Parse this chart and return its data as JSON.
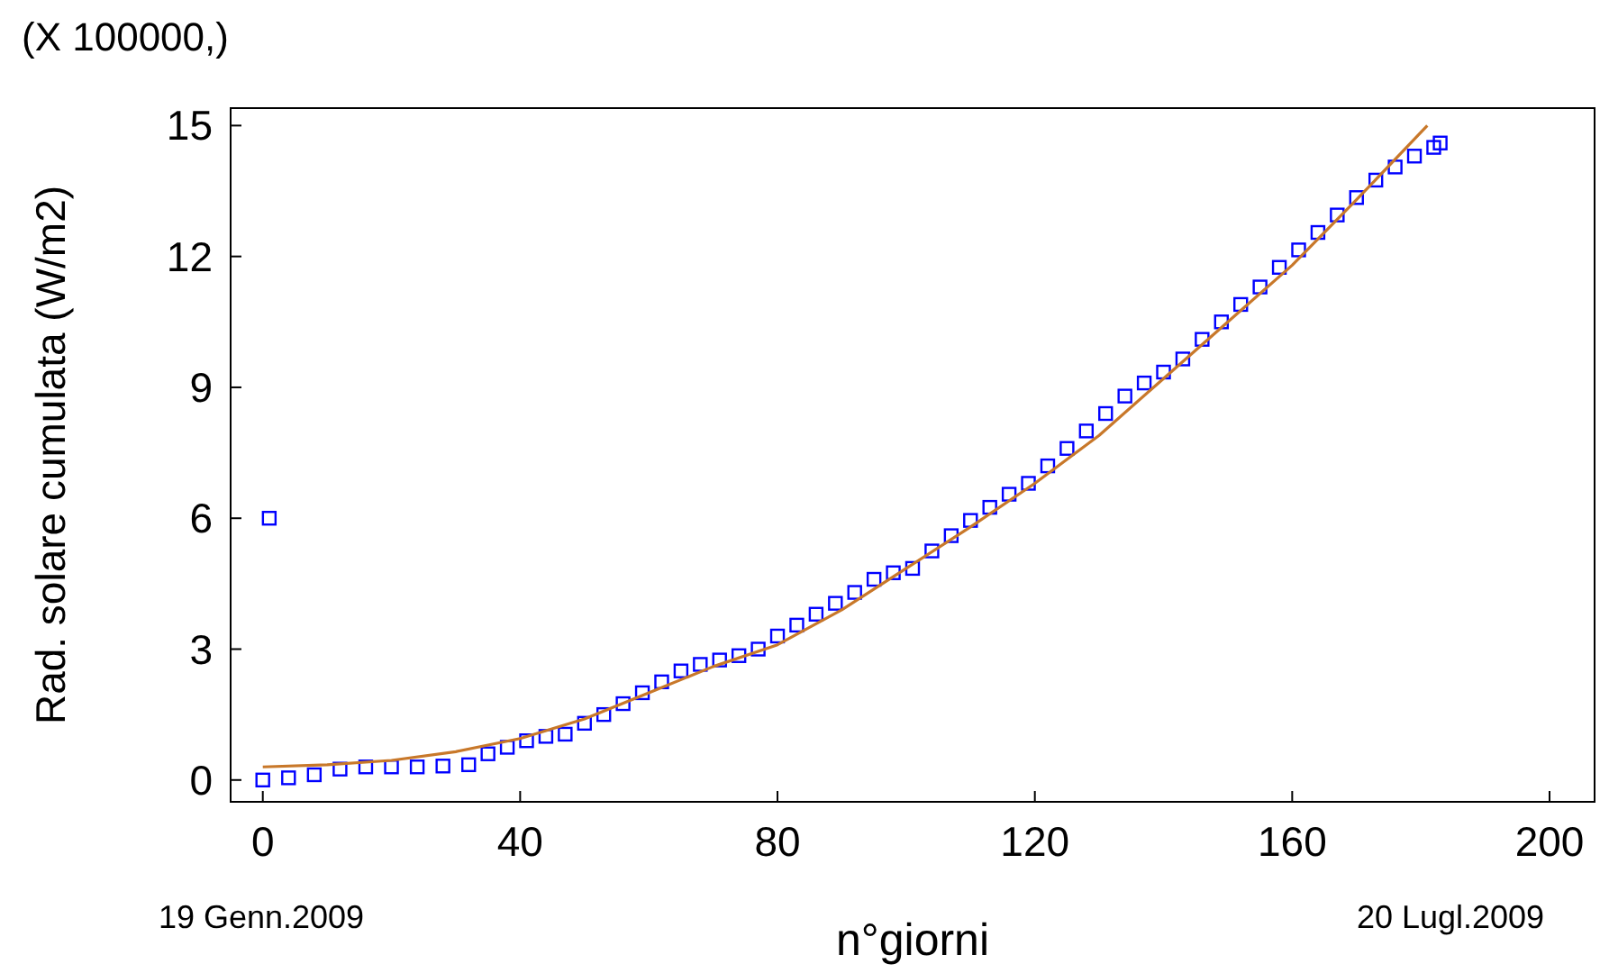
{
  "chart_data": {
    "type": "scatter",
    "xlabel": "n°giorni",
    "ylabel": "Rad. solare cumulata (W/m2)",
    "annotations": [
      "(X 100000,)",
      "19 Genn.2009",
      "20 Lugl.2009"
    ],
    "xlim": [
      -5,
      207
    ],
    "ylim": [
      -0.5,
      15.4
    ],
    "xticks": [
      0,
      40,
      80,
      120,
      160,
      200
    ],
    "yticks": [
      0,
      3,
      6,
      9,
      12,
      15
    ],
    "grid": false,
    "series": [
      {
        "marker": "square",
        "color": "#0000ff",
        "x": [
          0,
          1,
          4,
          8,
          12,
          16,
          20,
          24,
          28,
          32,
          35,
          38,
          41,
          44,
          47,
          50,
          53,
          56,
          59,
          62,
          65,
          68,
          71,
          74,
          77,
          80,
          83,
          86,
          89,
          92,
          95,
          98,
          101,
          104,
          107,
          110,
          113,
          116,
          119,
          122,
          125,
          128,
          131,
          134,
          137,
          140,
          143,
          146,
          149,
          152,
          155,
          158,
          161,
          164,
          167,
          170,
          173,
          176,
          179,
          182,
          183
        ],
        "values": [
          0,
          6,
          0.05,
          0.12,
          0.25,
          0.3,
          0.3,
          0.3,
          0.32,
          0.35,
          0.6,
          0.75,
          0.9,
          1.0,
          1.05,
          1.3,
          1.5,
          1.75,
          2.0,
          2.25,
          2.5,
          2.65,
          2.75,
          2.85,
          3.0,
          3.3,
          3.55,
          3.8,
          4.05,
          4.3,
          4.6,
          4.75,
          4.85,
          5.25,
          5.6,
          5.95,
          6.25,
          6.55,
          6.8,
          7.2,
          7.6,
          8.0,
          8.4,
          8.8,
          9.1,
          9.35,
          9.65,
          10.1,
          10.5,
          10.9,
          11.3,
          11.75,
          12.15,
          12.55,
          12.95,
          13.35,
          13.75,
          14.05,
          14.3,
          14.5,
          14.6
        ]
      },
      {
        "type": "line",
        "color": "#c8782a",
        "x": [
          0,
          10,
          20,
          30,
          40,
          50,
          60,
          70,
          80,
          90,
          100,
          110,
          120,
          130,
          140,
          150,
          160,
          170,
          181
        ],
        "values": [
          0.3,
          0.35,
          0.45,
          0.65,
          0.95,
          1.4,
          2.0,
          2.6,
          3.1,
          3.9,
          4.85,
          5.8,
          6.8,
          7.9,
          9.2,
          10.5,
          11.8,
          13.3,
          15.0
        ]
      }
    ]
  }
}
